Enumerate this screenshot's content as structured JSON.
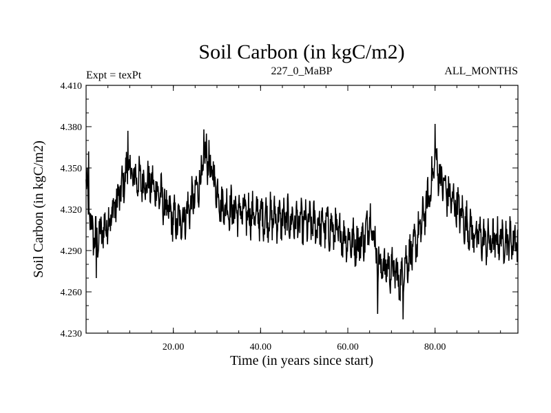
{
  "chart_data": {
    "type": "line",
    "title": "Soil Carbon (in kgC/m2)",
    "subtitle_left": "Expt = texPt",
    "subtitle_center": "227_0_MaBP",
    "subtitle_right": "ALL_MONTHS",
    "xlabel": "Time (in years since start)",
    "ylabel": "Soil Carbon (in kgC/m2)",
    "xlim": [
      0,
      99
    ],
    "ylim": [
      4.23,
      4.41
    ],
    "x_tick_values": [
      20,
      40,
      60,
      80
    ],
    "x_tick_labels": [
      "20.00",
      "40.00",
      "60.00",
      "80.00"
    ],
    "y_tick_values": [
      4.23,
      4.26,
      4.29,
      4.32,
      4.35,
      4.38,
      4.41
    ],
    "y_tick_labels": [
      "4.230",
      "4.260",
      "4.290",
      "4.320",
      "4.350",
      "4.380",
      "4.410"
    ],
    "grid": false,
    "samples_per_year": 12,
    "noise_amplitude": 0.012,
    "trend_x": [
      0,
      1,
      2,
      3,
      5,
      8,
      9.5,
      11,
      13,
      15,
      17,
      19,
      21,
      23,
      25,
      26.5,
      27.5,
      29,
      31,
      35,
      40,
      45,
      50,
      55,
      58,
      62,
      64,
      65,
      66,
      67,
      69,
      71,
      72,
      73,
      75,
      77,
      79,
      80,
      81,
      83,
      85,
      87,
      89,
      92,
      95,
      99
    ],
    "trend_y": [
      4.338,
      4.31,
      4.298,
      4.3,
      4.31,
      4.333,
      4.35,
      4.343,
      4.34,
      4.338,
      4.33,
      4.317,
      4.31,
      4.317,
      4.33,
      4.345,
      4.358,
      4.345,
      4.323,
      4.318,
      4.315,
      4.313,
      4.31,
      4.308,
      4.302,
      4.295,
      4.3,
      4.315,
      4.3,
      4.28,
      4.278,
      4.275,
      4.265,
      4.28,
      4.29,
      4.31,
      4.335,
      4.355,
      4.345,
      4.33,
      4.322,
      4.31,
      4.302,
      4.296,
      4.298,
      4.298
    ],
    "spikes": [
      [
        0.6,
        4.362
      ],
      [
        2.3,
        4.27
      ],
      [
        9.6,
        4.377
      ],
      [
        27.0,
        4.378
      ],
      [
        27.6,
        4.375
      ],
      [
        66.8,
        4.244
      ],
      [
        72.7,
        4.24
      ],
      [
        80.0,
        4.382
      ]
    ]
  }
}
